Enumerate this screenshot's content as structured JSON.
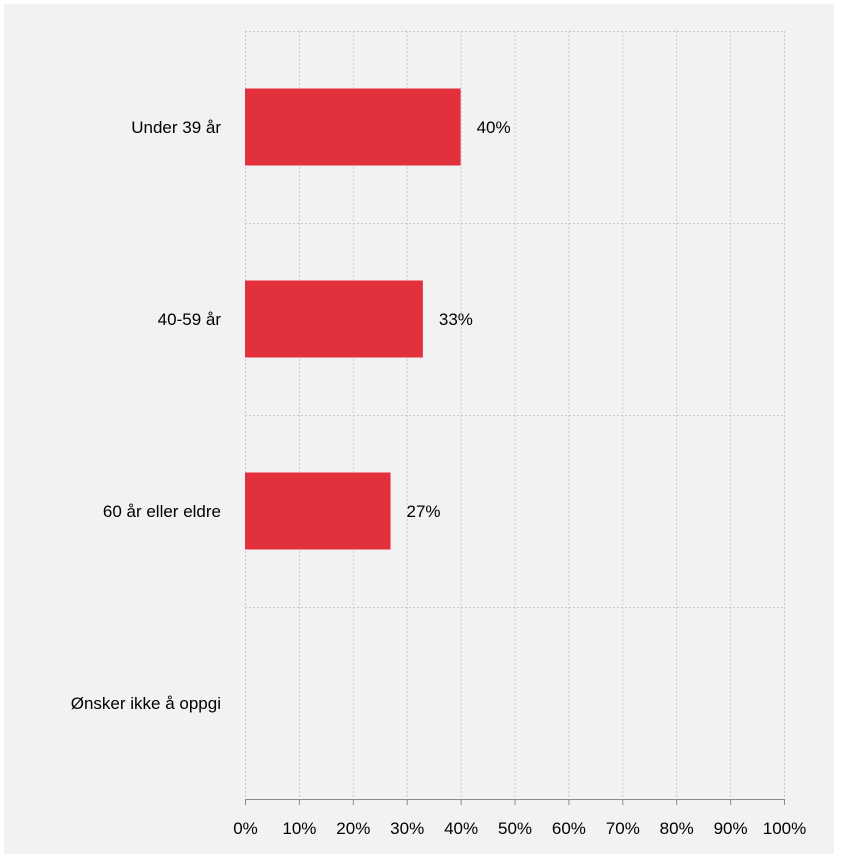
{
  "chart_data": {
    "type": "bar",
    "orientation": "horizontal",
    "categories": [
      "Under 39 år",
      "40-59 år",
      "60 år eller eldre",
      "Ønsker ikke å oppgi"
    ],
    "values": [
      40,
      33,
      27,
      0
    ],
    "data_labels": [
      "40%",
      "33%",
      "27%",
      ""
    ],
    "x_ticks": [
      "0%",
      "10%",
      "20%",
      "30%",
      "40%",
      "50%",
      "60%",
      "70%",
      "80%",
      "90%",
      "100%"
    ],
    "xlim": [
      0,
      100
    ],
    "grid": true,
    "legend": "none",
    "title": "",
    "xlabel": "",
    "ylabel": "",
    "colors": {
      "bar": "#e3303d",
      "background": "#f2f2f2",
      "grid": "#c8c8c8",
      "axis": "#8c8c8c"
    }
  }
}
